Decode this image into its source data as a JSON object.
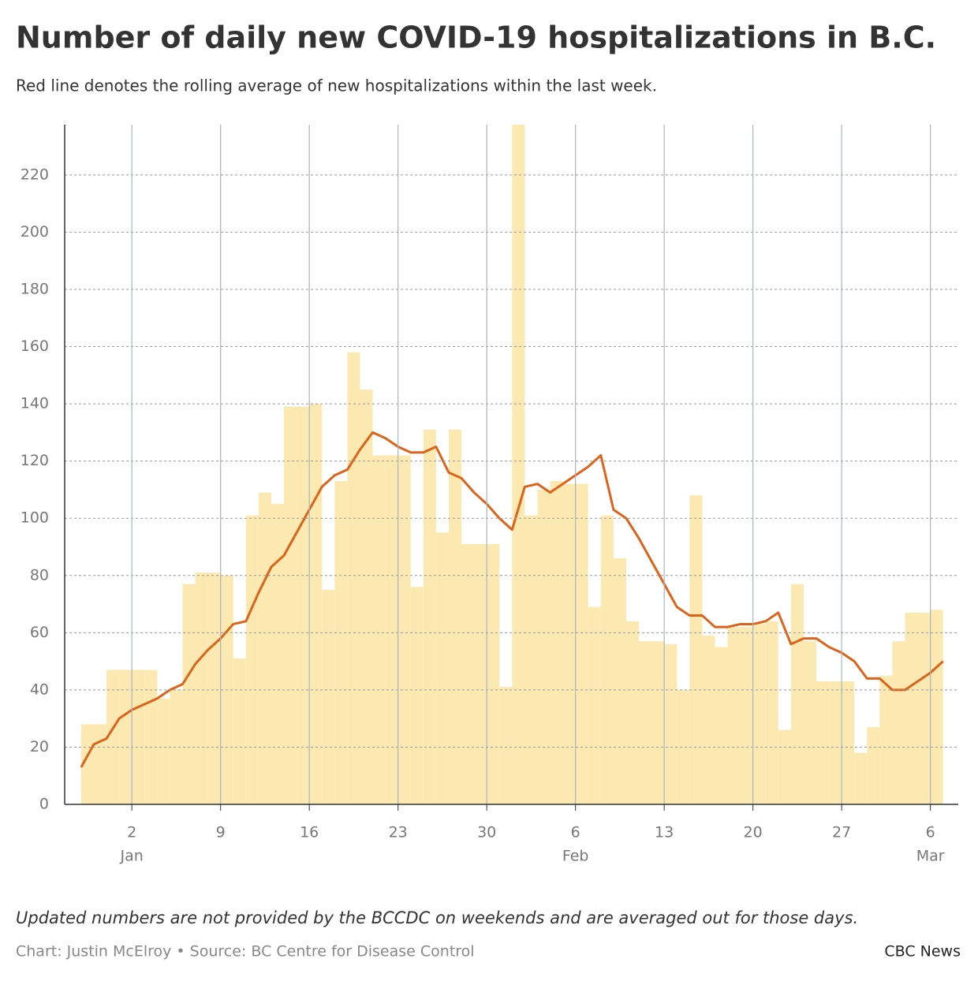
{
  "chart_data": {
    "type": "bar",
    "title": "Number of daily new COVID-19 hospitalizations in B.C.",
    "subtitle": "Red line denotes the rolling average of new hospitalizations within the last week.",
    "note": "Updated numbers are not provided by the BCCDC on weekends and are averaged out for those days.",
    "source": "Chart: Justin McElroy • Source: BC Centre for Disease Control",
    "brand": "CBC News",
    "x": [
      -2,
      -1,
      0,
      1,
      2,
      3,
      4,
      5,
      6,
      7,
      8,
      9,
      10,
      11,
      12,
      13,
      14,
      15,
      16,
      17,
      18,
      19,
      20,
      21,
      22,
      23,
      24,
      25,
      26,
      27,
      28,
      29,
      30,
      31,
      32,
      33,
      34,
      35,
      36,
      37,
      38,
      39,
      40,
      41,
      42,
      43,
      44,
      45,
      46,
      47,
      48,
      49,
      50,
      51,
      52,
      53,
      54,
      55,
      56,
      57,
      58,
      59,
      60,
      61,
      62,
      63,
      64,
      65
    ],
    "values": [
      28,
      28,
      47,
      47,
      47,
      47,
      37,
      40,
      77,
      81,
      81,
      80,
      51,
      101,
      109,
      105,
      139,
      139,
      140,
      75,
      113,
      158,
      145,
      122,
      122,
      122,
      76,
      131,
      95,
      131,
      91,
      91,
      91,
      41,
      238,
      101,
      110,
      113,
      112,
      112,
      69,
      101,
      86,
      64,
      57,
      57,
      56,
      40,
      108,
      59,
      55,
      62,
      62,
      63,
      64,
      26,
      77,
      57,
      43,
      43,
      43,
      18,
      27,
      45,
      57,
      67,
      67,
      68
    ],
    "color": "#fce9b2",
    "line_x": [
      -2,
      -1,
      0,
      1,
      2,
      3,
      4,
      5,
      6,
      7,
      8,
      9,
      10,
      11,
      12,
      13,
      14,
      15,
      16,
      17,
      18,
      19,
      20,
      21,
      22,
      23,
      24,
      25,
      26,
      27,
      28,
      29,
      30,
      31,
      32,
      33,
      34,
      35,
      36,
      37,
      38,
      39,
      40,
      41,
      42,
      43,
      44,
      45,
      46,
      47,
      48,
      49,
      50,
      51,
      52,
      53,
      54,
      55,
      56,
      57,
      58,
      59,
      60,
      61,
      62,
      63,
      64,
      65,
      66
    ],
    "line_values": [
      13,
      21,
      23,
      30,
      33,
      35,
      37,
      40,
      42,
      49,
      54,
      58,
      63,
      64,
      74,
      83,
      87,
      95,
      103,
      111,
      115,
      117,
      124,
      130,
      128,
      125,
      123,
      123,
      125,
      116,
      114,
      109,
      105,
      100,
      96,
      111,
      112,
      109,
      112,
      115,
      118,
      122,
      103,
      100,
      93,
      85,
      77,
      69,
      66,
      66,
      62,
      62,
      63,
      63,
      64,
      67,
      56,
      58,
      58,
      55,
      53,
      50,
      44,
      44,
      40,
      40,
      43,
      46,
      50
    ],
    "line_color": "#dc6319",
    "xlim": [
      -3.3,
      67.2
    ],
    "xticks": [
      2,
      9,
      16,
      23,
      30,
      {
        "value": 37,
        "label": "6"
      },
      {
        "value": 44,
        "label": "13"
      },
      {
        "value": 51,
        "label": "20"
      },
      {
        "value": 58,
        "label": "27"
      },
      {
        "value": 65,
        "label": "6"
      }
    ],
    "x_month_labels": [
      {
        "value": 2,
        "label": "Jan"
      },
      {
        "value": 37,
        "label": "Feb"
      },
      {
        "value": 65,
        "label": "Mar"
      }
    ],
    "ylim": [
      0,
      237.6
    ],
    "yticks": [
      0,
      20,
      40,
      60,
      80,
      100,
      120,
      140,
      160,
      180,
      200,
      220
    ],
    "grid": true
  }
}
